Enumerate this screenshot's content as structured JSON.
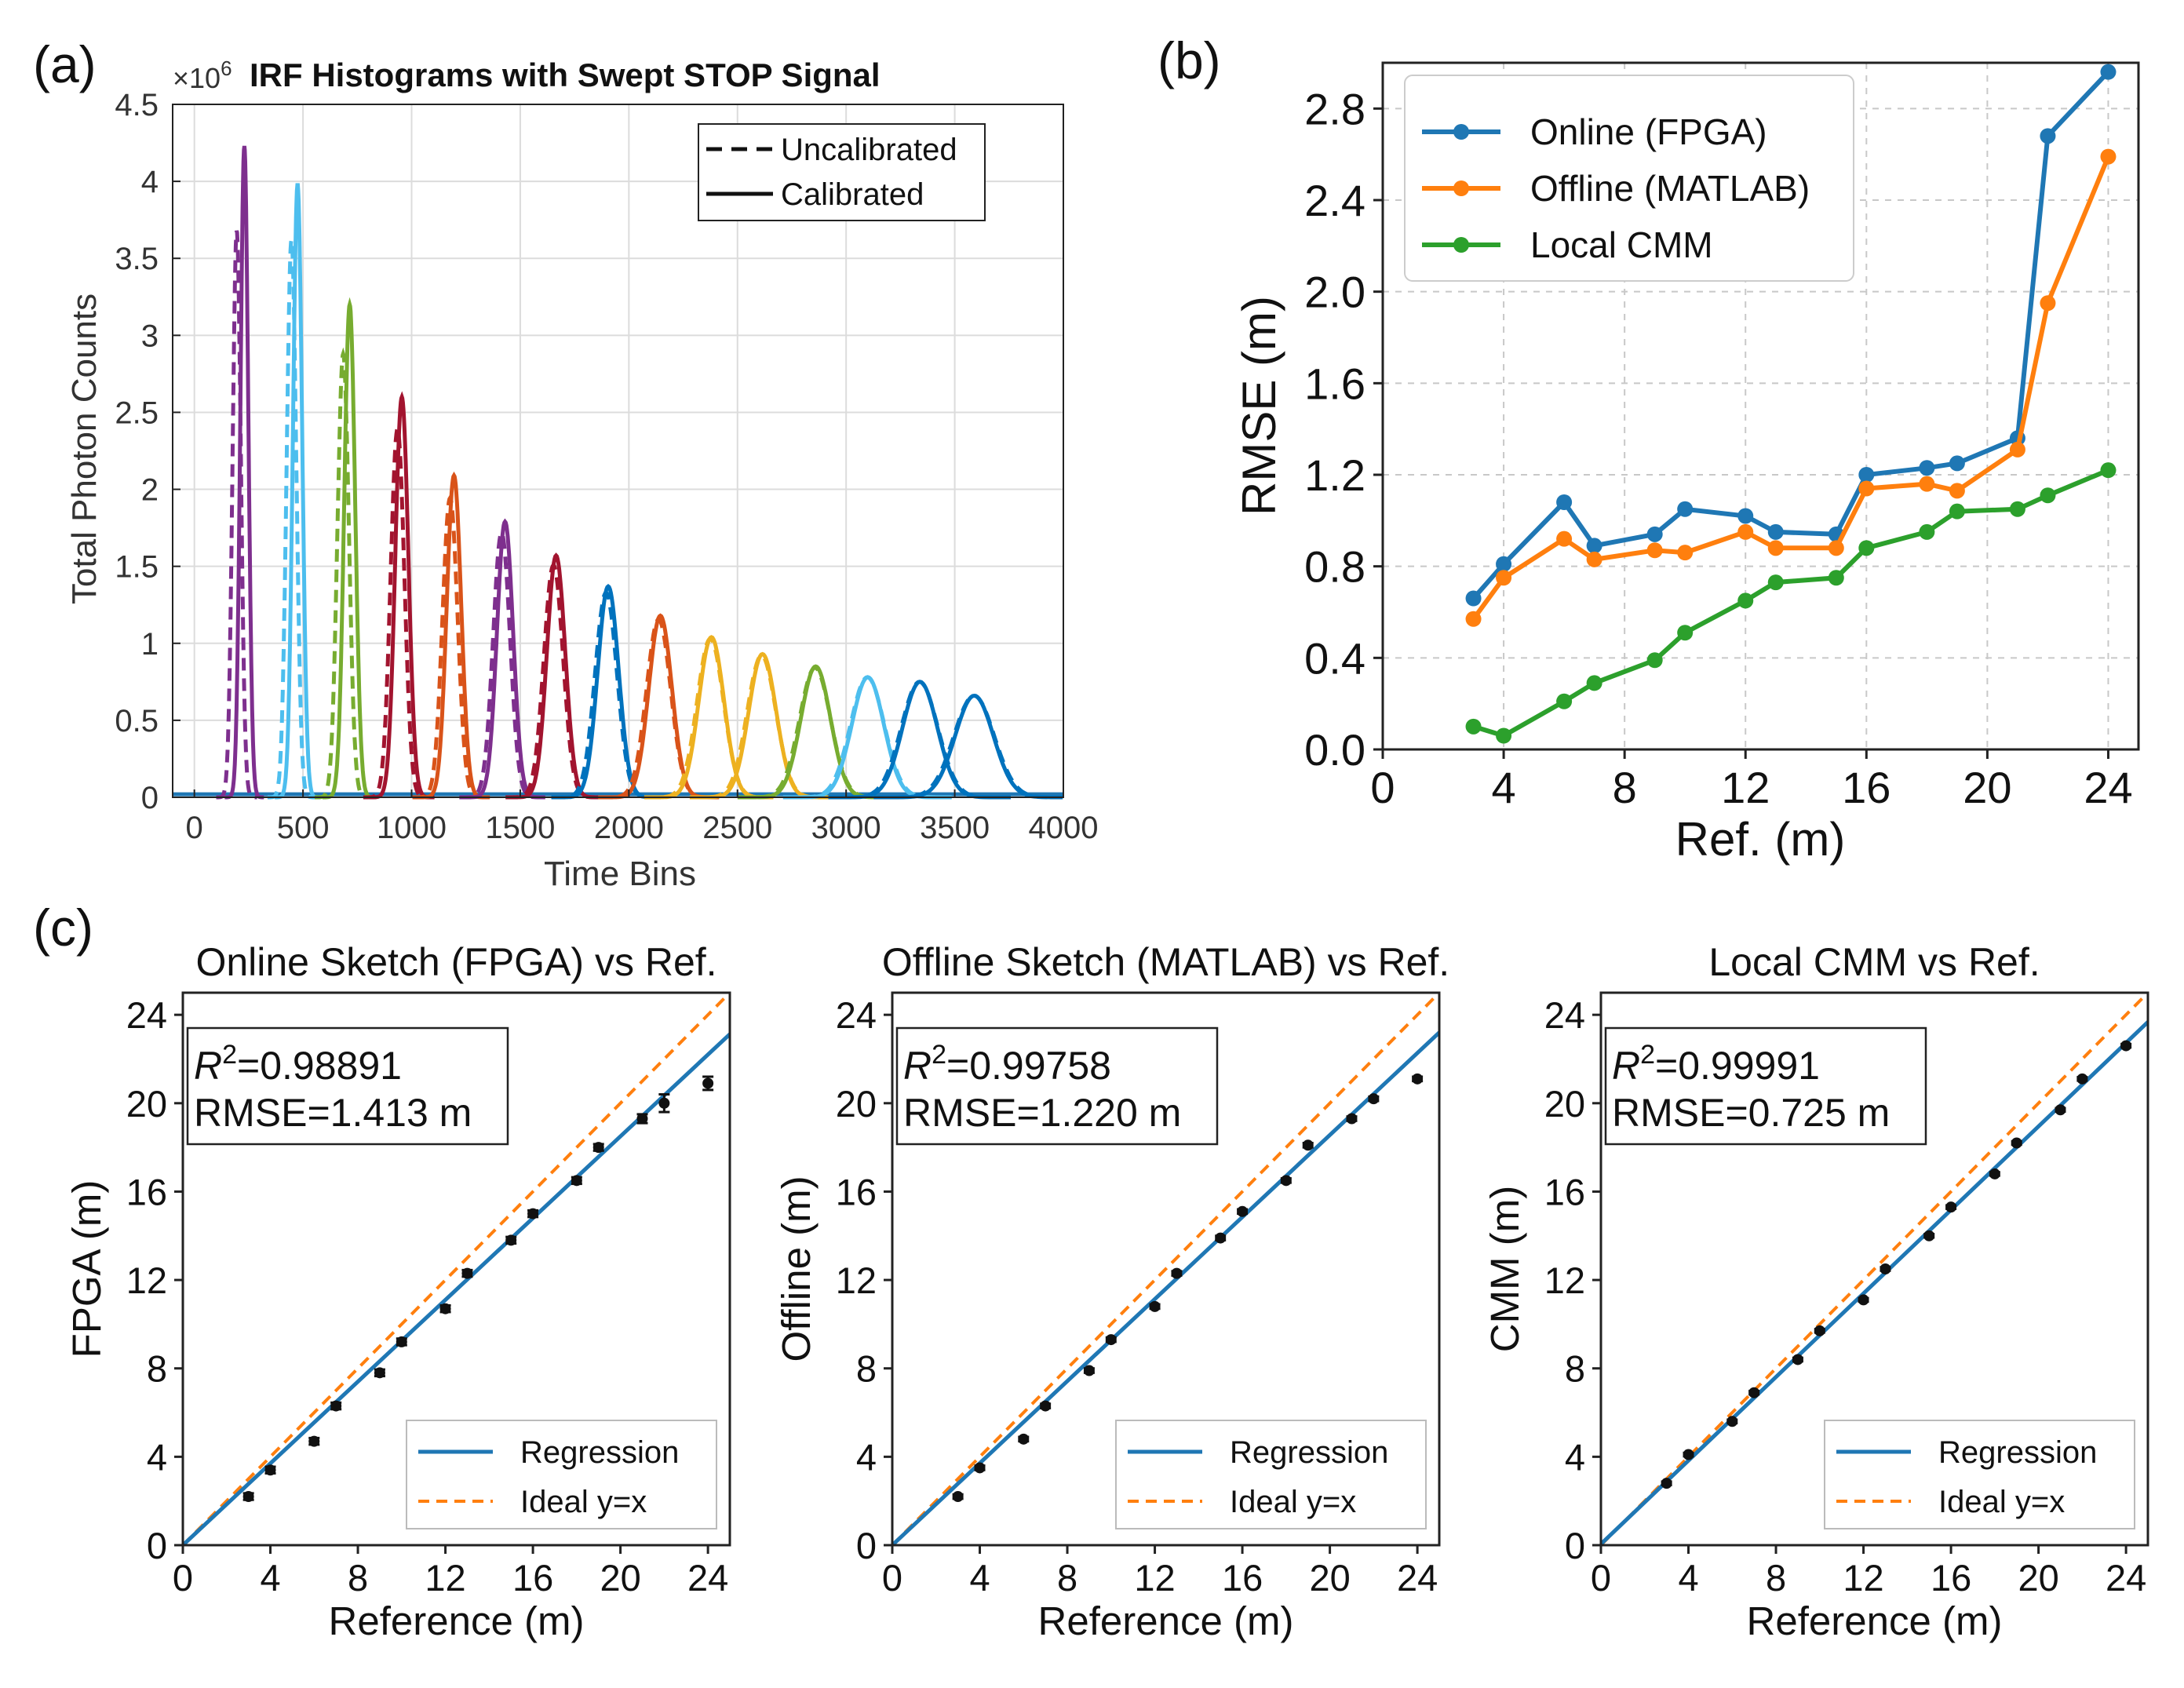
{
  "panels": {
    "a": "(a)",
    "b": "(b)",
    "c": "(c)"
  },
  "colors": {
    "blue": "#1f77b4",
    "orange": "#ff7f0e",
    "green": "#2ca02c",
    "hist": [
      "#7e2f8e",
      "#4dbeee",
      "#77ac30",
      "#a2142f",
      "#d95319",
      "#7e2f8e",
      "#a2142f",
      "#0072bd",
      "#d95319",
      "#edb120",
      "#edb120",
      "#77ac30",
      "#4dbeee",
      "#0072bd",
      "#0072bd"
    ]
  },
  "chart_data": [
    {
      "id": "a",
      "type": "line",
      "title": "IRF Histograms with Swept STOP Signal",
      "exponent_label": "×10",
      "exponent_power": "6",
      "xlabel": "Time Bins",
      "ylabel": "Total Photon Counts",
      "xlim": [
        -100,
        4000
      ],
      "ylim": [
        0,
        4.5
      ],
      "xticks": [
        "0",
        "500",
        "1000",
        "1500",
        "2000",
        "2500",
        "3000",
        "3500",
        "4000"
      ],
      "yticks": [
        "0",
        "0.5",
        "1",
        "1.5",
        "2",
        "2.5",
        "3",
        "3.5",
        "4",
        "4.5"
      ],
      "legend": {
        "dashed": "Uncalibrated",
        "solid": "Calibrated"
      },
      "peaks": [
        {
          "center": 230,
          "height": 4.23,
          "width": 18,
          "uncal_offset": -35,
          "uncal_scale": 0.87
        },
        {
          "center": 475,
          "height": 3.98,
          "width": 21,
          "uncal_offset": -28,
          "uncal_scale": 0.91
        },
        {
          "center": 715,
          "height": 3.2,
          "width": 25,
          "uncal_offset": -30,
          "uncal_scale": 0.9
        },
        {
          "center": 955,
          "height": 2.6,
          "width": 30,
          "uncal_offset": -20,
          "uncal_scale": 0.92
        },
        {
          "center": 1195,
          "height": 2.09,
          "width": 33,
          "uncal_offset": -18,
          "uncal_scale": 0.93
        },
        {
          "center": 1430,
          "height": 1.79,
          "width": 37,
          "uncal_offset": -16,
          "uncal_scale": 0.96
        },
        {
          "center": 1665,
          "height": 1.57,
          "width": 42,
          "uncal_offset": -12,
          "uncal_scale": 0.96
        },
        {
          "center": 1905,
          "height": 1.37,
          "width": 48,
          "uncal_offset": -10,
          "uncal_scale": 0.97
        },
        {
          "center": 2145,
          "height": 1.18,
          "width": 53,
          "uncal_offset": -8,
          "uncal_scale": 0.98
        },
        {
          "center": 2380,
          "height": 1.04,
          "width": 58,
          "uncal_offset": -5,
          "uncal_scale": 0.99
        },
        {
          "center": 2615,
          "height": 0.93,
          "width": 63,
          "uncal_offset": -4,
          "uncal_scale": 0.99
        },
        {
          "center": 2860,
          "height": 0.85,
          "width": 68,
          "uncal_offset": -3,
          "uncal_scale": 0.99
        },
        {
          "center": 3100,
          "height": 0.78,
          "width": 74,
          "uncal_offset": -2,
          "uncal_scale": 1.0
        },
        {
          "center": 3340,
          "height": 0.75,
          "width": 80,
          "uncal_offset": -2,
          "uncal_scale": 1.0
        },
        {
          "center": 3590,
          "height": 0.66,
          "width": 88,
          "uncal_offset": -1,
          "uncal_scale": 1.0
        }
      ]
    },
    {
      "id": "b",
      "type": "line",
      "title": "",
      "xlabel": "Ref. (m)",
      "ylabel": "RMSE (m)",
      "xlim": [
        0,
        25
      ],
      "ylim": [
        0,
        3.0
      ],
      "xticks": [
        0,
        4,
        8,
        12,
        16,
        20,
        24
      ],
      "yticks": [
        "0.0",
        "0.4",
        "0.8",
        "1.2",
        "1.6",
        "2.0",
        "2.4",
        "2.8"
      ],
      "x": [
        3,
        4,
        6,
        7,
        9,
        10,
        12,
        13,
        15,
        16,
        18,
        19,
        21,
        22,
        24
      ],
      "series": [
        {
          "name": "Online (FPGA)",
          "values": [
            0.66,
            0.81,
            1.08,
            0.89,
            0.94,
            1.05,
            1.02,
            0.95,
            0.94,
            1.2,
            1.23,
            1.25,
            1.36,
            2.68,
            2.96
          ]
        },
        {
          "name": "Offline (MATLAB)",
          "values": [
            0.57,
            0.75,
            0.92,
            0.83,
            0.87,
            0.86,
            0.95,
            0.88,
            0.88,
            1.14,
            1.16,
            1.13,
            1.31,
            1.95,
            2.59
          ]
        },
        {
          "name": "Local CMM",
          "values": [
            0.1,
            0.06,
            0.21,
            0.29,
            0.39,
            0.51,
            0.65,
            0.73,
            0.75,
            0.88,
            0.95,
            1.04,
            1.05,
            1.11,
            1.22
          ]
        }
      ]
    },
    {
      "id": "c1",
      "type": "scatter",
      "title": "Online Sketch (FPGA) vs Ref.",
      "xlabel": "Reference (m)",
      "ylabel": "FPGA (m)",
      "xlim": [
        0,
        25
      ],
      "ylim": [
        0,
        25
      ],
      "xticks": [
        0,
        4,
        8,
        12,
        16,
        20,
        24
      ],
      "yticks": [
        0,
        4,
        8,
        12,
        16,
        20,
        24
      ],
      "r2_value": "=0.98891",
      "rmse_text": "RMSE=1.413 m",
      "regression_slope": 0.925,
      "regression_intercept": 0,
      "x": [
        3,
        4,
        6,
        7,
        9,
        10,
        12,
        13,
        15,
        16,
        18,
        19,
        21,
        22,
        24
      ],
      "y": [
        2.2,
        3.4,
        4.7,
        6.3,
        7.8,
        9.2,
        10.7,
        12.3,
        13.8,
        15.0,
        16.5,
        18.0,
        19.3,
        20.0,
        20.9
      ],
      "err": [
        0.15,
        0.15,
        0.15,
        0.15,
        0.15,
        0.15,
        0.15,
        0.15,
        0.15,
        0.15,
        0.15,
        0.15,
        0.2,
        0.4,
        0.3
      ],
      "legend": {
        "regression": "Regression",
        "ideal": "Ideal y=x"
      }
    },
    {
      "id": "c2",
      "type": "scatter",
      "title": "Offline Sketch (MATLAB) vs Ref.",
      "xlabel": "Reference (m)",
      "ylabel": "Offline (m)",
      "xlim": [
        0,
        25
      ],
      "ylim": [
        0,
        25
      ],
      "xticks": [
        0,
        4,
        8,
        12,
        16,
        20,
        24
      ],
      "yticks": [
        0,
        4,
        8,
        12,
        16,
        20,
        24
      ],
      "r2_value": "=0.99758",
      "rmse_text": "RMSE=1.220 m",
      "regression_slope": 0.928,
      "regression_intercept": 0,
      "x": [
        3,
        4,
        6,
        7,
        9,
        10,
        12,
        13,
        15,
        16,
        18,
        19,
        21,
        22,
        24
      ],
      "y": [
        2.2,
        3.5,
        4.8,
        6.3,
        7.9,
        9.3,
        10.8,
        12.3,
        13.9,
        15.1,
        16.5,
        18.1,
        19.3,
        20.2,
        21.1
      ],
      "err": [
        0.1,
        0.1,
        0.1,
        0.1,
        0.1,
        0.1,
        0.1,
        0.1,
        0.1,
        0.1,
        0.1,
        0.1,
        0.1,
        0.1,
        0.1
      ],
      "legend": {
        "regression": "Regression",
        "ideal": "Ideal y=x"
      }
    },
    {
      "id": "c3",
      "type": "scatter",
      "title": "Local CMM vs Ref.",
      "xlabel": "Reference (m)",
      "ylabel": "CMM (m)",
      "xlim": [
        0,
        25
      ],
      "ylim": [
        0,
        25
      ],
      "xticks": [
        0,
        4,
        8,
        12,
        16,
        20,
        24
      ],
      "yticks": [
        0,
        4,
        8,
        12,
        16,
        20,
        24
      ],
      "r2_value": "=0.99991",
      "rmse_text": "RMSE=0.725 m",
      "regression_slope": 0.945,
      "regression_intercept": 0.05,
      "x": [
        3,
        4,
        6,
        7,
        9,
        10,
        12,
        13,
        15,
        16,
        18,
        19,
        21,
        22,
        24
      ],
      "y": [
        2.8,
        4.1,
        5.6,
        6.9,
        8.4,
        9.7,
        11.1,
        12.5,
        14.0,
        15.3,
        16.8,
        18.2,
        19.7,
        21.1,
        22.6
      ],
      "err": [
        0.08,
        0.08,
        0.08,
        0.08,
        0.08,
        0.08,
        0.08,
        0.08,
        0.08,
        0.08,
        0.08,
        0.08,
        0.08,
        0.08,
        0.08
      ],
      "legend": {
        "regression": "Regression",
        "ideal": "Ideal y=x"
      }
    }
  ]
}
